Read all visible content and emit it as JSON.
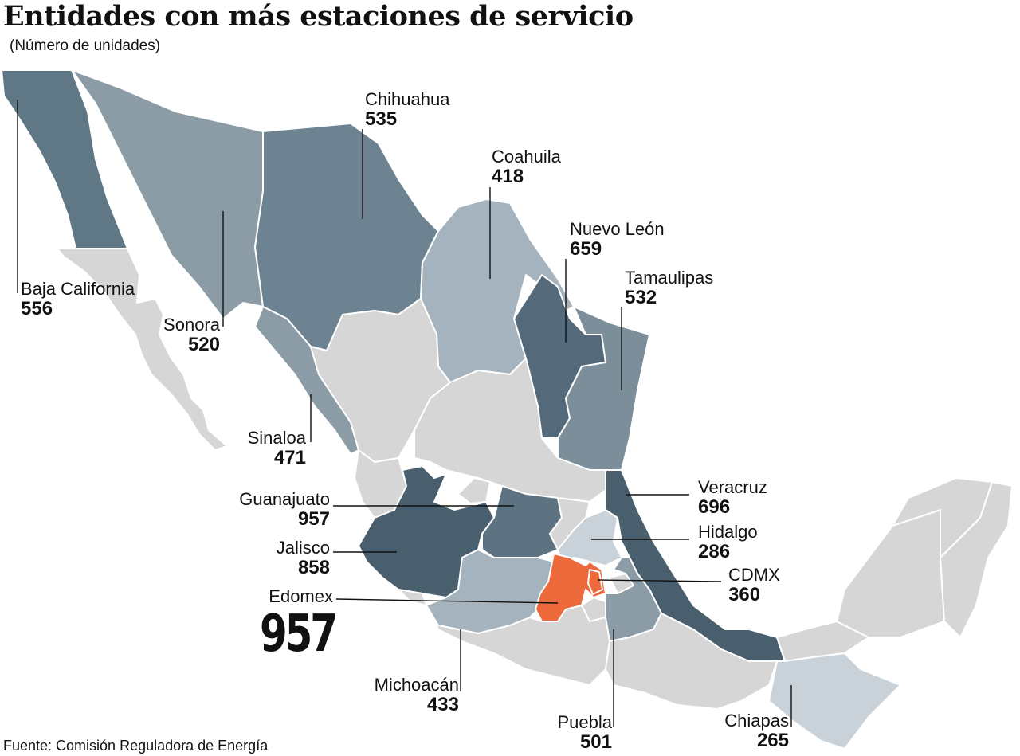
{
  "title": "Entidades con más estaciones de servicio",
  "subtitle": "(Número de unidades)",
  "source": "Fuente: Comisión Reguladora de Energía",
  "colors": {
    "background": "#ffffff",
    "other_states": "#d6d6d6",
    "tier_light": "#c9d2d9",
    "tier_low": "#a4b3bd",
    "tier_mid": "#8b9ca7",
    "tier_high": "#6e8391",
    "tier_top": "#4a5f6d",
    "highlight": "#ec6a3c",
    "borders": "#ffffff"
  },
  "states": [
    {
      "name": "Baja California",
      "value": "556"
    },
    {
      "name": "Sonora",
      "value": "520"
    },
    {
      "name": "Chihuahua",
      "value": "535"
    },
    {
      "name": "Coahuila",
      "value": "418"
    },
    {
      "name": "Nuevo León",
      "value": "659"
    },
    {
      "name": "Tamaulipas",
      "value": "532"
    },
    {
      "name": "Sinaloa",
      "value": "471"
    },
    {
      "name": "Guanajuato",
      "value": "957"
    },
    {
      "name": "Jalisco",
      "value": "858"
    },
    {
      "name": "Edomex",
      "value": "957"
    },
    {
      "name": "Veracruz",
      "value": "696"
    },
    {
      "name": "Hidalgo",
      "value": "286"
    },
    {
      "name": "CDMX",
      "value": "360"
    },
    {
      "name": "Michoacán",
      "value": "433"
    },
    {
      "name": "Puebla",
      "value": "501"
    },
    {
      "name": "Chiapas",
      "value": "265"
    }
  ]
}
